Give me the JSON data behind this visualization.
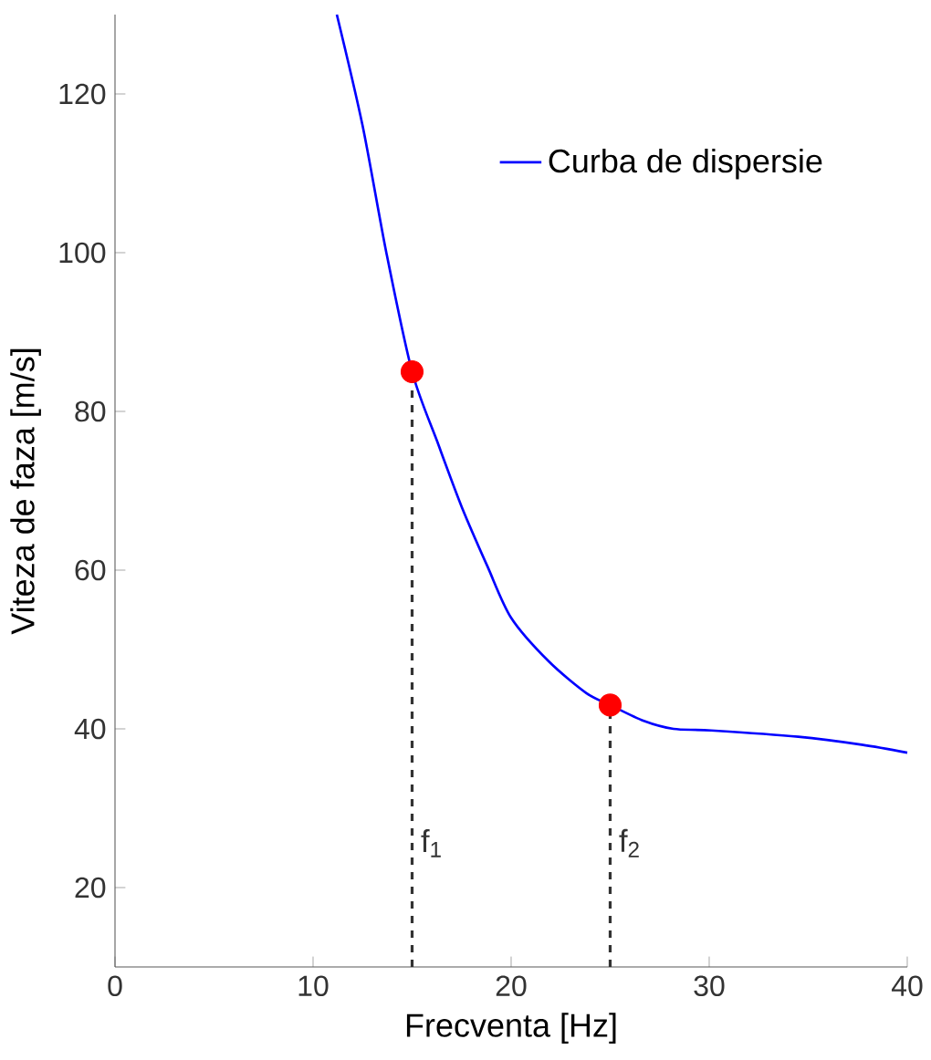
{
  "chart_data": {
    "type": "line",
    "xlabel": "Frecventa [Hz]",
    "ylabel": "Viteza de faza [m/s]",
    "xlim": [
      0,
      40
    ],
    "ylim": [
      10,
      130
    ],
    "xticks": [
      0,
      10,
      20,
      30,
      40
    ],
    "yticks": [
      20,
      40,
      60,
      80,
      100,
      120
    ],
    "grid": false,
    "legend": "top right",
    "series": [
      {
        "name": "Curba de dispersie",
        "color": "#0000ff",
        "marker": "none",
        "line_style": "solid",
        "x": [
          11.2,
          12.5,
          13.7,
          15.0,
          16.3,
          17.5,
          18.8,
          20.0,
          21.9,
          23.8,
          25.0,
          26.7,
          28.2,
          30.1,
          34.5,
          37.7,
          40.0
        ],
        "values": [
          130,
          116,
          100,
          85,
          76,
          68,
          60.5,
          54,
          48.5,
          44.5,
          43,
          41,
          40,
          39.8,
          39,
          38,
          37
        ]
      },
      {
        "type": "scatter",
        "color": "#ff0000",
        "marker": "circle",
        "x": [
          15,
          25
        ],
        "values": [
          85,
          43
        ]
      }
    ],
    "ref_lines": [
      {
        "axis": "x",
        "value": 15,
        "label": "f$_{1}$",
        "color": "#333333",
        "line_style": "dashed"
      },
      {
        "axis": "x",
        "value": 25,
        "label": "f$_{2}$",
        "color": "#333333",
        "line_style": "dashed"
      }
    ]
  }
}
